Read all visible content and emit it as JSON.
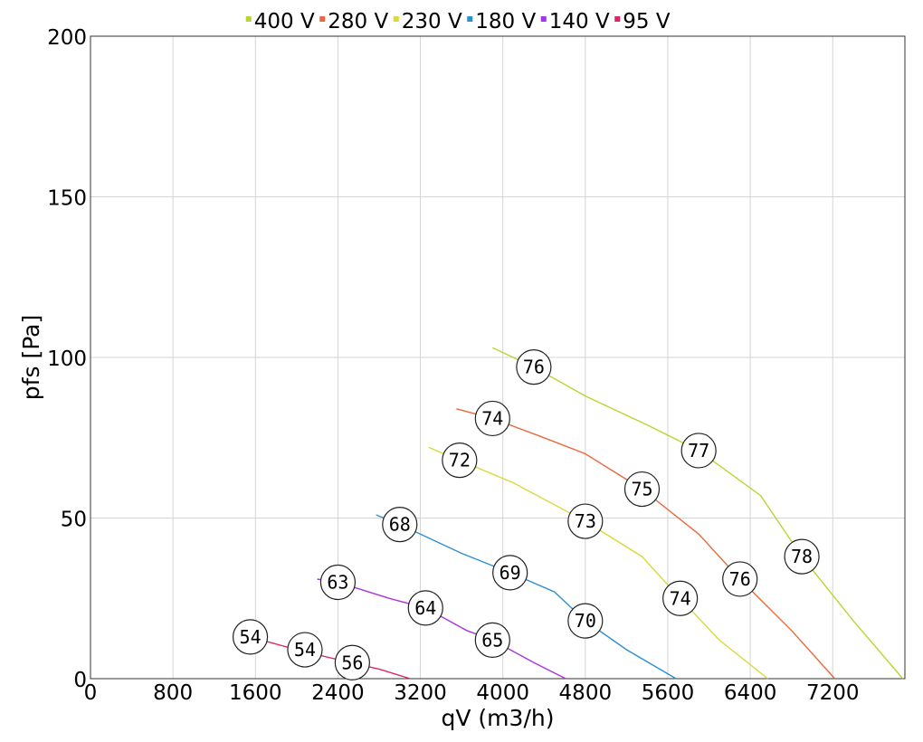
{
  "chart_data": {
    "type": "line",
    "xlabel": "qV (m3/h)",
    "ylabel": "pfs [Pa]",
    "xlim": [
      0,
      7900
    ],
    "ylim": [
      0,
      200
    ],
    "x_ticks": [
      0,
      800,
      1600,
      2400,
      3200,
      4000,
      4800,
      5600,
      6400,
      7200
    ],
    "x_tick_labels": [
      "0",
      "800",
      "1600",
      "2400",
      "3200",
      "4000",
      "4800",
      "5600",
      "6400",
      "7200"
    ],
    "y_ticks": [
      0,
      50,
      100,
      150,
      200
    ],
    "y_tick_labels": [
      "0",
      "50",
      "100",
      "150",
      "200"
    ],
    "grid": true,
    "legend_position": "top-center",
    "series": [
      {
        "name": "400 V",
        "color": "#b8d531",
        "points": [
          [
            3900,
            103
          ],
          [
            4300,
            97
          ],
          [
            4800,
            88
          ],
          [
            5400,
            79
          ],
          [
            5900,
            71
          ],
          [
            6500,
            57
          ],
          [
            6900,
            38
          ],
          [
            7400,
            18
          ],
          [
            7880,
            0
          ]
        ],
        "labels": [
          {
            "x": 4300,
            "y": 97,
            "text": "76"
          },
          {
            "x": 5900,
            "y": 71,
            "text": "77"
          },
          {
            "x": 6900,
            "y": 38,
            "text": "78"
          }
        ]
      },
      {
        "name": "280 V",
        "color": "#e8693c",
        "points": [
          [
            3550,
            84
          ],
          [
            3900,
            81
          ],
          [
            4400,
            75
          ],
          [
            4800,
            70
          ],
          [
            5350,
            59
          ],
          [
            5900,
            45
          ],
          [
            6300,
            31
          ],
          [
            6800,
            15
          ],
          [
            7220,
            0
          ]
        ],
        "labels": [
          {
            "x": 3900,
            "y": 81,
            "text": "74"
          },
          {
            "x": 5350,
            "y": 59,
            "text": "75"
          },
          {
            "x": 6300,
            "y": 31,
            "text": "76"
          }
        ]
      },
      {
        "name": "230 V",
        "color": "#d9d93a",
        "points": [
          [
            3280,
            72
          ],
          [
            3580,
            68
          ],
          [
            4100,
            61
          ],
          [
            4800,
            49
          ],
          [
            5350,
            38
          ],
          [
            5720,
            25
          ],
          [
            6100,
            12
          ],
          [
            6570,
            0
          ]
        ],
        "labels": [
          {
            "x": 3580,
            "y": 68,
            "text": "72"
          },
          {
            "x": 4800,
            "y": 49,
            "text": "73"
          },
          {
            "x": 5720,
            "y": 25,
            "text": "74"
          }
        ]
      },
      {
        "name": "180 V",
        "color": "#2d8fd4",
        "points": [
          [
            2770,
            51
          ],
          [
            3000,
            48
          ],
          [
            3600,
            39
          ],
          [
            4070,
            33
          ],
          [
            4500,
            27
          ],
          [
            4800,
            18
          ],
          [
            5200,
            9
          ],
          [
            5680,
            0
          ]
        ],
        "labels": [
          {
            "x": 3000,
            "y": 48,
            "text": "68"
          },
          {
            "x": 4070,
            "y": 33,
            "text": "69"
          },
          {
            "x": 4800,
            "y": 18,
            "text": "70"
          }
        ]
      },
      {
        "name": "140 V",
        "color": "#a834e0",
        "points": [
          [
            2200,
            31
          ],
          [
            2400,
            30
          ],
          [
            2900,
            25
          ],
          [
            3250,
            22
          ],
          [
            3650,
            15
          ],
          [
            3900,
            12
          ],
          [
            4300,
            5
          ],
          [
            4610,
            0
          ]
        ],
        "labels": [
          {
            "x": 2400,
            "y": 30,
            "text": "63"
          },
          {
            "x": 3250,
            "y": 22,
            "text": "64"
          },
          {
            "x": 3900,
            "y": 12,
            "text": "65"
          }
        ]
      },
      {
        "name": "95 V",
        "color": "#e0226a",
        "points": [
          [
            1550,
            13
          ],
          [
            2000,
            9
          ],
          [
            2520,
            5
          ],
          [
            2800,
            3
          ],
          [
            3100,
            0
          ]
        ],
        "labels": [
          {
            "x": 1550,
            "y": 13,
            "text": "54"
          },
          {
            "x": 2080,
            "y": 9,
            "text": "54"
          },
          {
            "x": 2540,
            "y": 5,
            "text": "56"
          }
        ]
      }
    ]
  }
}
